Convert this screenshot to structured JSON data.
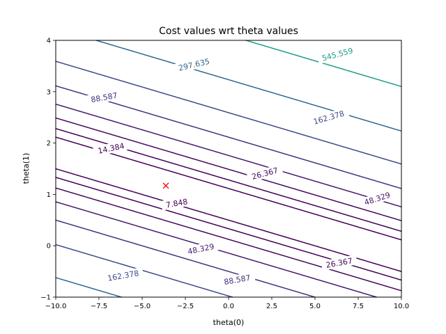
{
  "chart_data": {
    "type": "contour",
    "title": "Cost values wrt theta values",
    "xlabel": "theta(0)",
    "ylabel": "theta(1)",
    "xlim": [
      -10,
      10
    ],
    "ylim": [
      -1,
      4
    ],
    "x_ticks": [
      "−10.0",
      "−7.5",
      "−5.0",
      "−2.5",
      "0.0",
      "2.5",
      "5.0",
      "7.5",
      "10.0"
    ],
    "y_ticks": [
      "−1",
      "0",
      "1",
      "2",
      "3",
      "4"
    ],
    "grid": false,
    "levels": [
      {
        "value": 7.848,
        "color": "#440154"
      },
      {
        "value": 14.384,
        "color": "#440154"
      },
      {
        "value": 26.367,
        "color": "#450a5c"
      },
      {
        "value": 48.329,
        "color": "#471a6c"
      },
      {
        "value": 88.587,
        "color": "#46327e"
      },
      {
        "value": 162.378,
        "color": "#3e4a89"
      },
      {
        "value": 297.635,
        "color": "#31688e"
      },
      {
        "value": 545.559,
        "color": "#1f9e89"
      }
    ],
    "level_labels": [
      {
        "text": "545.559",
        "x": 6.3,
        "y": 3.73,
        "angle": 15,
        "color": "#1f9e89"
      },
      {
        "text": "297.635",
        "x": -2.0,
        "y": 3.53,
        "angle": 13,
        "color": "#31688e"
      },
      {
        "text": "162.378",
        "x": 5.8,
        "y": 2.5,
        "angle": 16,
        "color": "#3e4a89"
      },
      {
        "text": "88.587",
        "x": -7.2,
        "y": 2.89,
        "angle": 10,
        "color": "#46327e"
      },
      {
        "text": "14.384",
        "x": -6.8,
        "y": 1.9,
        "angle": 12,
        "color": "#440154"
      },
      {
        "text": "26.367",
        "x": 2.1,
        "y": 1.41,
        "angle": 15,
        "color": "#450a5c"
      },
      {
        "text": "48.329",
        "x": 8.6,
        "y": 0.92,
        "angle": 18,
        "color": "#471a6c"
      },
      {
        "text": "7.848",
        "x": -3.0,
        "y": 0.83,
        "angle": 10,
        "color": "#440154"
      },
      {
        "text": "48.329",
        "x": -1.6,
        "y": -0.06,
        "angle": 12,
        "color": "#471a6c"
      },
      {
        "text": "26.367",
        "x": 6.4,
        "y": -0.33,
        "angle": 10,
        "color": "#450a5c"
      },
      {
        "text": "162.378",
        "x": -6.1,
        "y": -0.58,
        "angle": 10,
        "color": "#3e4a89"
      },
      {
        "text": "88.587",
        "x": 0.5,
        "y": -0.66,
        "angle": 10,
        "color": "#46327e"
      }
    ],
    "minimum_marker": {
      "x": -3.63,
      "y": 1.17,
      "symbol": "x",
      "color": "#ff0000"
    }
  }
}
